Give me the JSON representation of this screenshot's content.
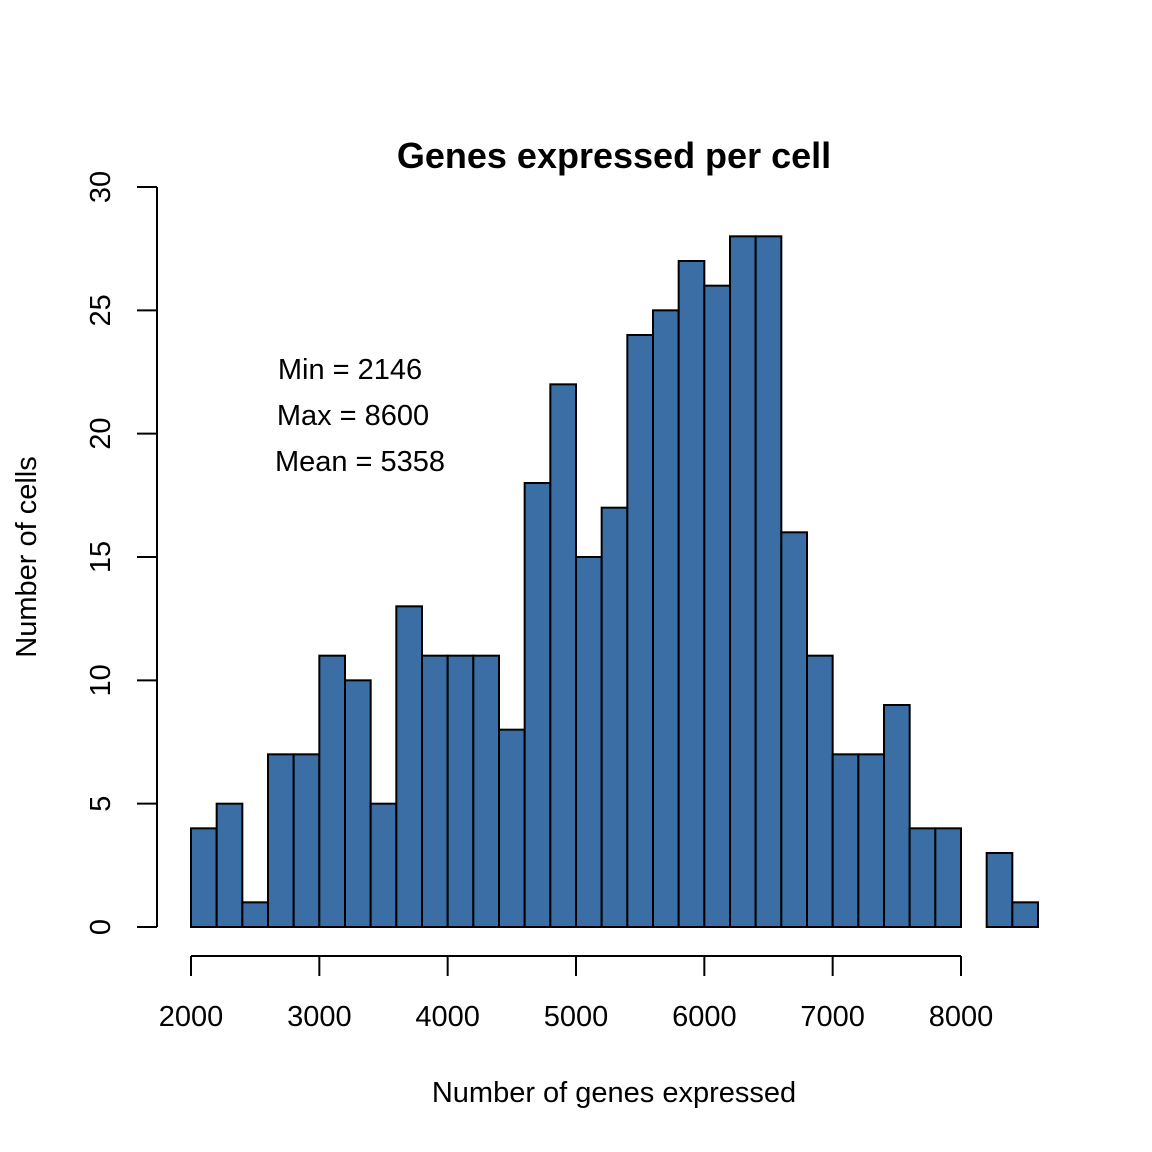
{
  "chart_data": {
    "type": "bar",
    "title": "Genes expressed per cell",
    "xlabel": "Number of genes expressed",
    "ylabel": "Number of cells",
    "bin_width": 200,
    "bin_start": 2000,
    "values": [
      4,
      5,
      1,
      7,
      7,
      11,
      10,
      5,
      13,
      11,
      11,
      11,
      8,
      18,
      22,
      15,
      17,
      24,
      25,
      27,
      26,
      28,
      28,
      16,
      11,
      7,
      7,
      9,
      4,
      4,
      0,
      3,
      1
    ],
    "xticks": [
      2000,
      3000,
      4000,
      5000,
      6000,
      7000,
      8000
    ],
    "yticks": [
      0,
      5,
      10,
      15,
      20,
      25,
      30
    ],
    "xlim": [
      2000,
      8000
    ],
    "ylim": [
      0,
      30
    ],
    "annotations": [
      "Min = 2146",
      "Max = 8600",
      "Mean = 5358"
    ],
    "bar_color": "#3A6EA5",
    "grid": false
  }
}
